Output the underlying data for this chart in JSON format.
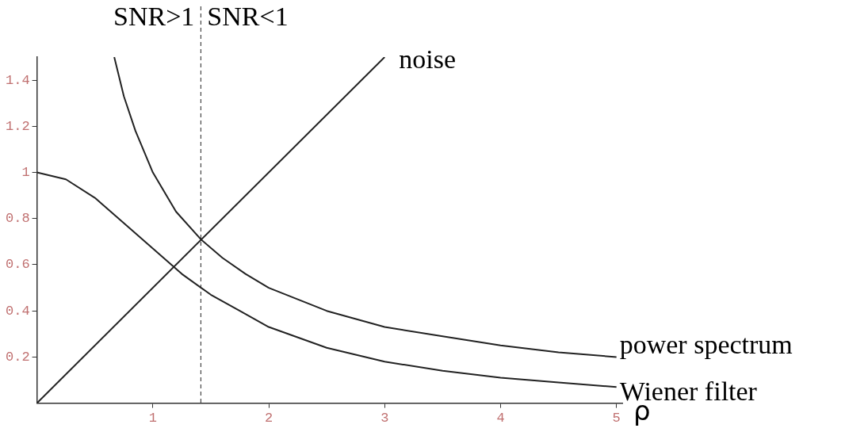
{
  "chart_data": {
    "type": "line",
    "xlabel": "ρ",
    "marker": "none",
    "xlim": [
      0,
      5.05
    ],
    "xticks": [
      1,
      2,
      3,
      4,
      5
    ],
    "ylim": [
      0,
      1.5
    ],
    "yticks": [
      0.2,
      0.4,
      0.6,
      0.8,
      1,
      1.2,
      1.4
    ],
    "series": [
      {
        "name": "noise",
        "color": "#222222",
        "x": [
          0,
          3
        ],
        "values": [
          0,
          1.5
        ]
      },
      {
        "name": "power spectrum",
        "color": "#222222",
        "x": [
          0.667,
          0.75,
          0.85,
          1,
          1.2,
          1.414,
          1.6,
          1.8,
          2,
          2.5,
          3,
          3.5,
          4,
          4.5,
          5
        ],
        "values": [
          1.5,
          1.33,
          1.18,
          1,
          0.83,
          0.71,
          0.63,
          0.56,
          0.5,
          0.4,
          0.33,
          0.29,
          0.25,
          0.22,
          0.2
        ]
      },
      {
        "name": "Wiener filter",
        "color": "#222222",
        "x": [
          0,
          0.25,
          0.5,
          0.75,
          1,
          1.25,
          1.5,
          1.75,
          2,
          2.5,
          3,
          3.5,
          4,
          4.5,
          5
        ],
        "values": [
          1,
          0.97,
          0.89,
          0.78,
          0.67,
          0.56,
          0.47,
          0.4,
          0.33,
          0.24,
          0.18,
          0.14,
          0.11,
          0.09,
          0.07
        ]
      }
    ],
    "ref_lines": [
      {
        "axis": "x",
        "value": 1.414,
        "label": null,
        "line_style": "dashed",
        "color": "#222222"
      }
    ],
    "annotations": [
      "SNR>1",
      "SNR<1"
    ]
  }
}
